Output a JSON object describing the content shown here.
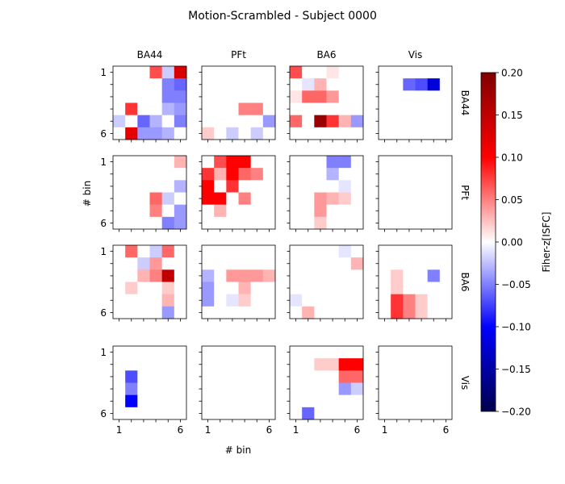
{
  "chart_data": {
    "type": "heatmap",
    "title": "Motion-Scrambled - Subject 0000",
    "xlabel": "# bin",
    "ylabel": "# bin",
    "row_labels": [
      "BA44",
      "PFt",
      "BA6",
      "Vis"
    ],
    "col_labels": [
      "BA44",
      "PFt",
      "BA6",
      "Vis"
    ],
    "x_ticks": [
      "1",
      "6"
    ],
    "y_ticks": [
      "1",
      "6"
    ],
    "colorbar": {
      "label": "Fiher-z[ISFC]",
      "vmin": -0.2,
      "vmax": 0.2,
      "ticks": [
        "0.20",
        "0.15",
        "0.10",
        "0.05",
        "0.00",
        "−0.05",
        "−0.10",
        "−0.15",
        "−0.20"
      ],
      "colormap": "seismic"
    },
    "matrices": [
      [
        [
          [
            0,
            0,
            0,
            0.07,
            -0.02,
            0.13
          ],
          [
            0,
            0,
            0,
            0,
            -0.05,
            -0.06
          ],
          [
            0,
            0,
            0,
            0,
            -0.05,
            -0.05
          ],
          [
            0,
            0.08,
            0,
            0,
            -0.03,
            -0.04
          ],
          [
            -0.02,
            0,
            -0.06,
            -0.03,
            0,
            -0.05
          ],
          [
            0,
            0.12,
            -0.04,
            -0.04,
            -0.03,
            0
          ]
        ],
        [
          [
            0,
            0,
            0,
            0,
            0,
            0
          ],
          [
            0,
            0,
            0,
            0,
            0,
            0
          ],
          [
            0,
            0,
            0,
            0,
            0,
            0
          ],
          [
            0,
            0,
            0,
            0.05,
            0.05,
            0
          ],
          [
            0,
            0,
            0,
            0,
            0,
            -0.04
          ],
          [
            0.02,
            0,
            -0.02,
            0,
            -0.02,
            0
          ]
        ],
        [
          [
            0.07,
            0,
            0,
            0.01,
            0,
            0
          ],
          [
            0,
            -0.01,
            0.03,
            0,
            0,
            0
          ],
          [
            0.01,
            0.06,
            0.06,
            0.04,
            0,
            0
          ],
          [
            0,
            0,
            0,
            0,
            0,
            0
          ],
          [
            0.06,
            0,
            0.18,
            0.08,
            0.03,
            -0.04
          ],
          [
            0,
            0,
            0,
            0,
            0,
            0
          ]
        ],
        [
          [
            0,
            0,
            0,
            0,
            0,
            0
          ],
          [
            0,
            0,
            -0.06,
            -0.07,
            -0.12,
            0
          ],
          [
            0,
            0,
            0,
            0,
            0,
            0
          ],
          [
            0,
            0,
            0,
            0,
            0,
            0
          ],
          [
            0,
            0,
            0,
            0,
            0,
            0
          ],
          [
            0,
            0,
            0,
            0,
            0,
            0
          ]
        ]
      ],
      [
        [
          [
            0,
            0,
            0,
            0,
            0,
            0.03
          ],
          [
            0,
            0,
            0,
            0,
            0,
            0
          ],
          [
            0,
            0,
            0,
            0,
            0,
            -0.03
          ],
          [
            0,
            0,
            0,
            0.06,
            -0.02,
            0
          ],
          [
            0,
            0,
            0,
            0.05,
            0,
            -0.04
          ],
          [
            0,
            0,
            0,
            0,
            -0.05,
            -0.04
          ]
        ],
        [
          [
            0,
            0.07,
            0.1,
            0.1,
            0,
            0
          ],
          [
            0.08,
            0.03,
            0.1,
            0.06,
            0.05,
            0
          ],
          [
            0.1,
            0,
            0.08,
            0,
            0,
            0
          ],
          [
            0.1,
            0.1,
            0,
            0.05,
            0,
            0
          ],
          [
            0,
            0.03,
            0,
            0,
            0,
            0
          ],
          [
            0,
            0,
            0,
            0,
            0,
            0
          ]
        ],
        [
          [
            0,
            0,
            0,
            -0.05,
            -0.05,
            0
          ],
          [
            0,
            0,
            0,
            -0.03,
            0,
            0
          ],
          [
            0,
            0,
            0,
            0,
            -0.01,
            0
          ],
          [
            0,
            0,
            0.04,
            0.03,
            0.02,
            0
          ],
          [
            0,
            0,
            0.04,
            0,
            0,
            0
          ],
          [
            0,
            0,
            0.02,
            0,
            0,
            0
          ]
        ],
        [
          [
            0,
            0,
            0,
            0,
            0,
            0
          ],
          [
            0,
            0,
            0,
            0,
            0,
            0
          ],
          [
            0,
            0,
            0,
            0,
            0,
            0
          ],
          [
            0,
            0,
            0,
            0,
            0,
            0
          ],
          [
            0,
            0,
            0,
            0,
            0,
            0
          ],
          [
            0,
            0,
            0,
            0,
            0,
            0
          ]
        ]
      ],
      [
        [
          [
            0,
            0.06,
            0,
            -0.02,
            0.06,
            0
          ],
          [
            0,
            0,
            -0.02,
            0.04,
            0,
            0
          ],
          [
            0,
            0,
            0.03,
            0.05,
            0.15,
            0
          ],
          [
            0,
            0.02,
            0,
            0,
            0.02,
            0
          ],
          [
            0,
            0,
            0,
            0,
            0.03,
            0
          ],
          [
            0,
            0,
            0,
            0,
            -0.04,
            0
          ]
        ],
        [
          [
            0,
            0,
            0,
            0,
            0,
            0
          ],
          [
            0,
            0,
            0,
            0,
            0,
            0
          ],
          [
            -0.03,
            0,
            0.04,
            0.04,
            0.04,
            0.03
          ],
          [
            -0.04,
            0,
            0,
            0.03,
            0,
            0
          ],
          [
            -0.04,
            0,
            -0.01,
            0.02,
            0,
            0
          ],
          [
            0,
            0,
            0,
            0,
            0,
            0
          ]
        ],
        [
          [
            0,
            0,
            0,
            0,
            -0.01,
            0
          ],
          [
            0,
            0,
            0,
            0,
            0,
            0.03
          ],
          [
            0,
            0,
            0,
            0,
            0,
            0
          ],
          [
            0,
            0,
            0,
            0,
            0,
            0
          ],
          [
            -0.01,
            0,
            0,
            0,
            0,
            0
          ],
          [
            0,
            0.03,
            0,
            0,
            0,
            0
          ]
        ],
        [
          [
            0,
            0,
            0,
            0,
            0,
            0
          ],
          [
            0,
            0,
            0,
            0,
            0,
            0
          ],
          [
            0,
            0.02,
            0,
            0,
            -0.05,
            0
          ],
          [
            0,
            0.02,
            0,
            0,
            0,
            0
          ],
          [
            0,
            0.08,
            0.05,
            0.02,
            0,
            0
          ],
          [
            0,
            0.08,
            0.05,
            0.02,
            0,
            0
          ]
        ]
      ],
      [
        [
          [
            0,
            0,
            0,
            0,
            0,
            0
          ],
          [
            0,
            0,
            0,
            0,
            0,
            0
          ],
          [
            0,
            -0.07,
            0,
            0,
            0,
            0
          ],
          [
            0,
            -0.05,
            0,
            0,
            0,
            0
          ],
          [
            0,
            -0.1,
            0,
            0,
            0,
            0
          ],
          [
            0,
            0,
            0,
            0,
            0,
            0
          ]
        ],
        [
          [
            0,
            0,
            0,
            0,
            0,
            0
          ],
          [
            0,
            0,
            0,
            0,
            0,
            0
          ],
          [
            0,
            0,
            0,
            0,
            0,
            0
          ],
          [
            0,
            0,
            0,
            0,
            0,
            0
          ],
          [
            0,
            0,
            0,
            0,
            0,
            0
          ],
          [
            0,
            0,
            0,
            0,
            0,
            0
          ]
        ],
        [
          [
            0,
            0,
            0,
            0,
            0,
            0
          ],
          [
            0,
            0,
            0.02,
            0.02,
            0.1,
            0.1
          ],
          [
            0,
            0,
            0,
            0,
            0.06,
            0.06
          ],
          [
            0,
            0,
            0,
            0,
            -0.04,
            -0.02
          ],
          [
            0,
            0,
            0,
            0,
            0,
            0
          ],
          [
            0,
            -0.06,
            0,
            0,
            0,
            0
          ]
        ],
        [
          [
            0,
            0,
            0,
            0,
            0,
            0
          ],
          [
            0,
            0,
            0,
            0,
            0,
            0
          ],
          [
            0,
            0,
            0,
            0,
            0,
            0
          ],
          [
            0,
            0,
            0,
            0,
            0,
            0
          ],
          [
            0,
            0,
            0,
            0,
            0,
            0
          ],
          [
            0,
            0,
            0,
            0,
            0,
            0
          ]
        ]
      ]
    ]
  }
}
